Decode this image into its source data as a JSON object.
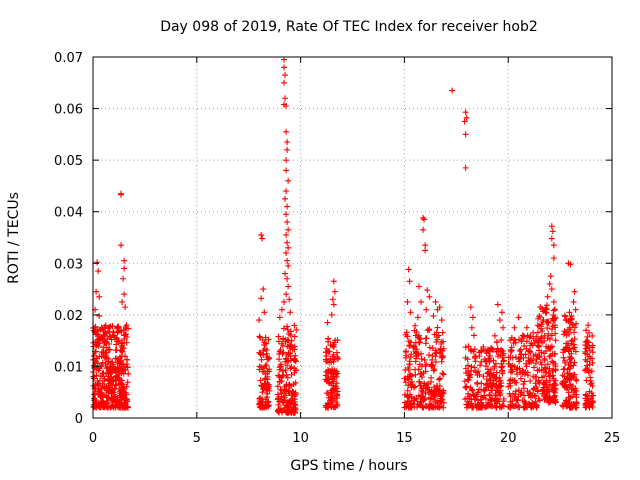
{
  "chart_data": {
    "type": "scatter",
    "title": "Day 098 of 2019, Rate Of TEC Index for receiver hob2",
    "xlabel": "GPS time / hours",
    "ylabel": "ROTI / TECUs",
    "xlim": [
      0,
      25
    ],
    "ylim": [
      0,
      0.07
    ],
    "xticks": [
      0,
      5,
      10,
      15,
      20,
      25
    ],
    "xtick_labels": [
      "0",
      "5",
      "10",
      "15",
      "20",
      "25"
    ],
    "yticks": [
      0,
      0.01,
      0.02,
      0.03,
      0.04,
      0.05,
      0.06,
      0.07
    ],
    "ytick_labels": [
      "0",
      "0.01",
      "0.02",
      "0.03",
      "0.04",
      "0.05",
      "0.06",
      "0.07"
    ],
    "grid": true,
    "marker": "+",
    "color": "#ff0000",
    "clusters": [
      {
        "x_range": [
          0.0,
          1.7
        ],
        "y_range": [
          0.002,
          0.018
        ],
        "count": 420
      },
      {
        "x_range": [
          8.0,
          8.5
        ],
        "y_range": [
          0.002,
          0.016
        ],
        "count": 90
      },
      {
        "x_range": [
          8.9,
          9.8
        ],
        "y_range": [
          0.001,
          0.018
        ],
        "count": 180
      },
      {
        "x_range": [
          11.2,
          11.8
        ],
        "y_range": [
          0.002,
          0.016
        ],
        "count": 110
      },
      {
        "x_range": [
          15.0,
          16.9
        ],
        "y_range": [
          0.002,
          0.018
        ],
        "count": 260
      },
      {
        "x_range": [
          17.9,
          19.0
        ],
        "y_range": [
          0.002,
          0.014
        ],
        "count": 120
      },
      {
        "x_range": [
          19.0,
          19.8
        ],
        "y_range": [
          0.002,
          0.016
        ],
        "count": 120
      },
      {
        "x_range": [
          20.0,
          21.4
        ],
        "y_range": [
          0.002,
          0.016
        ],
        "count": 170
      },
      {
        "x_range": [
          21.4,
          22.3
        ],
        "y_range": [
          0.003,
          0.022
        ],
        "count": 170
      },
      {
        "x_range": [
          22.6,
          23.3
        ],
        "y_range": [
          0.002,
          0.02
        ],
        "count": 140
      },
      {
        "x_range": [
          23.7,
          24.1
        ],
        "y_range": [
          0.002,
          0.016
        ],
        "count": 70
      }
    ],
    "points": [
      [
        1.35,
        0.0435
      ],
      [
        1.35,
        0.0433
      ],
      [
        1.35,
        0.0335
      ],
      [
        1.5,
        0.0305
      ],
      [
        1.5,
        0.029
      ],
      [
        1.45,
        0.027
      ],
      [
        0.2,
        0.0302
      ],
      [
        0.25,
        0.0285
      ],
      [
        0.15,
        0.0245
      ],
      [
        0.3,
        0.0235
      ],
      [
        0.1,
        0.021
      ],
      [
        0.3,
        0.0198
      ],
      [
        1.5,
        0.024
      ],
      [
        1.4,
        0.0225
      ],
      [
        1.55,
        0.0215
      ],
      [
        8.1,
        0.0355
      ],
      [
        8.15,
        0.0348
      ],
      [
        8.2,
        0.025
      ],
      [
        8.1,
        0.0232
      ],
      [
        8.25,
        0.0205
      ],
      [
        8.0,
        0.019
      ],
      [
        9.2,
        0.0695
      ],
      [
        9.2,
        0.068
      ],
      [
        9.25,
        0.0665
      ],
      [
        9.2,
        0.065
      ],
      [
        9.25,
        0.062
      ],
      [
        9.2,
        0.0608
      ],
      [
        9.3,
        0.0605
      ],
      [
        9.3,
        0.0555
      ],
      [
        9.35,
        0.0535
      ],
      [
        9.35,
        0.052
      ],
      [
        9.3,
        0.05
      ],
      [
        9.3,
        0.048
      ],
      [
        9.4,
        0.046
      ],
      [
        9.3,
        0.044
      ],
      [
        9.25,
        0.0425
      ],
      [
        9.35,
        0.041
      ],
      [
        9.3,
        0.0395
      ],
      [
        9.35,
        0.038
      ],
      [
        9.4,
        0.0365
      ],
      [
        9.3,
        0.0355
      ],
      [
        9.35,
        0.034
      ],
      [
        9.4,
        0.033
      ],
      [
        9.3,
        0.032
      ],
      [
        9.35,
        0.0305
      ],
      [
        9.4,
        0.0295
      ],
      [
        9.25,
        0.028
      ],
      [
        9.35,
        0.027
      ],
      [
        9.4,
        0.0255
      ],
      [
        9.3,
        0.024
      ],
      [
        9.2,
        0.0225
      ],
      [
        9.1,
        0.021
      ],
      [
        9.0,
        0.0195
      ],
      [
        9.5,
        0.0205
      ],
      [
        9.45,
        0.023
      ],
      [
        11.6,
        0.0265
      ],
      [
        11.65,
        0.0245
      ],
      [
        11.55,
        0.023
      ],
      [
        11.6,
        0.022
      ],
      [
        11.5,
        0.02
      ],
      [
        11.3,
        0.0185
      ],
      [
        15.2,
        0.0288
      ],
      [
        15.25,
        0.0265
      ],
      [
        15.15,
        0.0225
      ],
      [
        15.3,
        0.0205
      ],
      [
        15.9,
        0.0388
      ],
      [
        15.95,
        0.0385
      ],
      [
        15.9,
        0.0365
      ],
      [
        16.0,
        0.0335
      ],
      [
        16.0,
        0.0325
      ],
      [
        15.7,
        0.0255
      ],
      [
        16.1,
        0.0248
      ],
      [
        16.2,
        0.0235
      ],
      [
        15.8,
        0.0225
      ],
      [
        16.05,
        0.021
      ],
      [
        15.65,
        0.0195
      ],
      [
        16.5,
        0.0225
      ],
      [
        16.6,
        0.021
      ],
      [
        16.7,
        0.0215
      ],
      [
        16.4,
        0.0198
      ],
      [
        16.8,
        0.019
      ],
      [
        17.3,
        0.0635
      ],
      [
        17.95,
        0.0593
      ],
      [
        18.0,
        0.0582
      ],
      [
        17.9,
        0.0575
      ],
      [
        17.95,
        0.055
      ],
      [
        17.95,
        0.0485
      ],
      [
        18.2,
        0.0215
      ],
      [
        18.3,
        0.0195
      ],
      [
        18.25,
        0.0175
      ],
      [
        18.35,
        0.016
      ],
      [
        19.5,
        0.022
      ],
      [
        19.7,
        0.0205
      ],
      [
        19.6,
        0.019
      ],
      [
        19.75,
        0.0175
      ],
      [
        20.5,
        0.0195
      ],
      [
        20.3,
        0.0175
      ],
      [
        20.9,
        0.0175
      ],
      [
        21.2,
        0.0165
      ],
      [
        20.7,
        0.016
      ],
      [
        22.1,
        0.0372
      ],
      [
        22.15,
        0.0362
      ],
      [
        22.1,
        0.0348
      ],
      [
        22.2,
        0.0335
      ],
      [
        22.2,
        0.031
      ],
      [
        22.05,
        0.0275
      ],
      [
        22.0,
        0.026
      ],
      [
        22.1,
        0.025
      ],
      [
        21.9,
        0.0235
      ],
      [
        22.2,
        0.0225
      ],
      [
        21.8,
        0.0205
      ],
      [
        21.7,
        0.019
      ],
      [
        22.9,
        0.03
      ],
      [
        23.0,
        0.0298
      ],
      [
        23.2,
        0.0245
      ],
      [
        23.15,
        0.0225
      ],
      [
        23.25,
        0.021
      ],
      [
        22.95,
        0.0205
      ],
      [
        23.85,
        0.018
      ],
      [
        23.9,
        0.0165
      ],
      [
        23.75,
        0.017
      ]
    ]
  }
}
